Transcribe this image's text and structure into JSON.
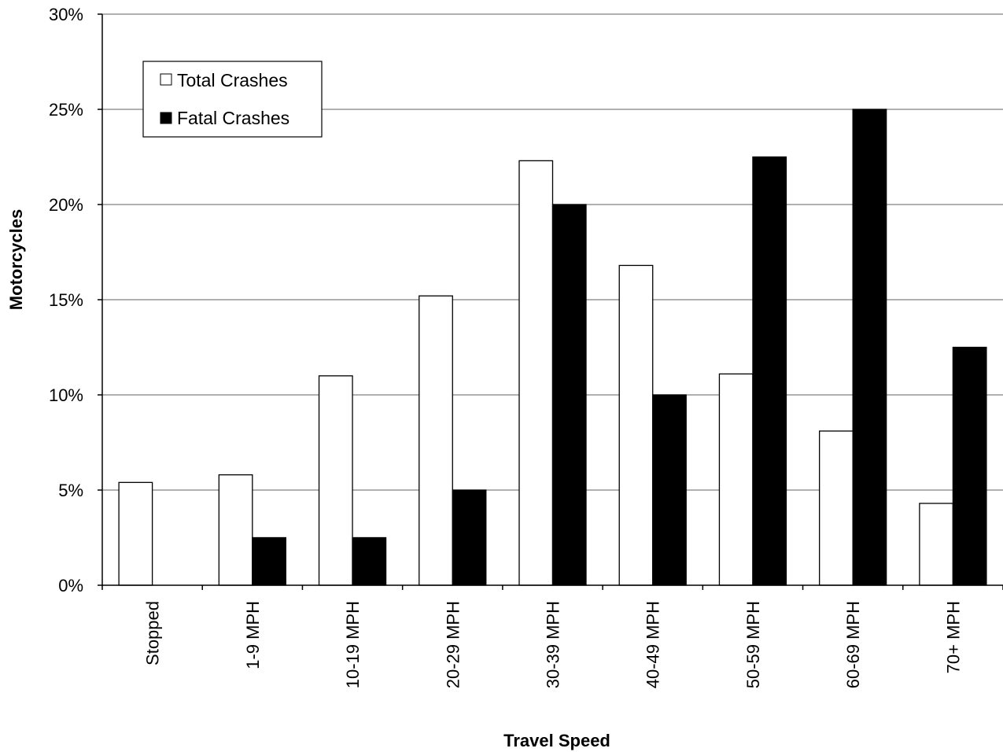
{
  "chart_data": {
    "type": "bar",
    "title": "",
    "xlabel": "Travel Speed",
    "ylabel": "Motorcycles",
    "ylim": [
      0,
      30
    ],
    "y_ticks": [
      "0%",
      "5%",
      "10%",
      "15%",
      "20%",
      "25%",
      "30%"
    ],
    "grid": true,
    "legend_position": "top-left",
    "categories": [
      "Stopped",
      "1-9 MPH",
      "10-19 MPH",
      "20-29 MPH",
      "30-39 MPH",
      "40-49 MPH",
      "50-59 MPH",
      "60-69 MPH",
      "70+ MPH"
    ],
    "series": [
      {
        "name": "Total Crashes",
        "color": "#ffffff",
        "values": [
          5.4,
          5.8,
          11.0,
          15.2,
          22.3,
          16.8,
          11.1,
          8.1,
          4.3
        ]
      },
      {
        "name": "Fatal Crashes",
        "color": "#000000",
        "values": [
          0,
          2.5,
          2.5,
          5.0,
          20.0,
          10.0,
          22.5,
          25.0,
          12.5
        ]
      }
    ]
  }
}
